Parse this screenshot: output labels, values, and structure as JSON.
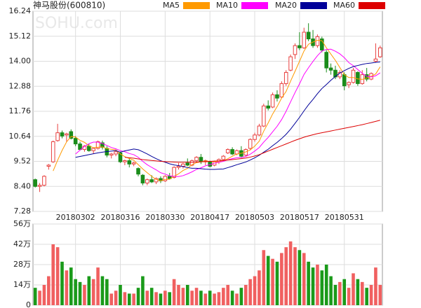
{
  "chart_data": [
    {
      "type": "candlestick",
      "title": "神马股份(600810)",
      "watermark": "SOHU.com",
      "categories": [
        null,
        null,
        null,
        null,
        null,
        null,
        null,
        null,
        null,
        "20180302",
        null,
        null,
        null,
        null,
        null,
        null,
        null,
        null,
        null,
        "20180316",
        null,
        null,
        null,
        null,
        null,
        null,
        null,
        null,
        null,
        "20180330",
        null,
        null,
        null,
        null,
        null,
        null,
        null,
        null,
        null,
        "20180417",
        null,
        null,
        null,
        null,
        null,
        null,
        null,
        null,
        null,
        "20180503",
        null,
        null,
        null,
        null,
        null,
        null,
        null,
        null,
        null,
        "20180517",
        null,
        null,
        null,
        null,
        null,
        null,
        null,
        null,
        null,
        "20180531",
        null,
        null,
        null,
        null,
        null,
        null,
        null,
        null
      ],
      "open": [
        8.7,
        8.4,
        8.45,
        9.3,
        9.5,
        10.45,
        10.8,
        10.7,
        10.85,
        10.55,
        10.3,
        10.05,
        10.2,
        10.0,
        10.1,
        10.35,
        10.1,
        9.8,
        9.85,
        9.9,
        9.5,
        9.55,
        9.4,
        9.2,
        8.9,
        8.55,
        8.7,
        8.6,
        8.75,
        8.65,
        8.85,
        8.8,
        9.25,
        9.3,
        9.45,
        9.35,
        9.55,
        9.7,
        9.5,
        9.5,
        9.35,
        9.5,
        9.6,
        9.9,
        10.05,
        9.85,
        10.0,
        9.8,
        10.1,
        10.5,
        10.7,
        11.1,
        12.0,
        11.95,
        12.5,
        12.4,
        13.0,
        13.6,
        14.3,
        14.7,
        14.6,
        15.3,
        15.0,
        14.7,
        15.0,
        14.4,
        13.7,
        13.6,
        13.3,
        13.4,
        12.95,
        13.05,
        13.5,
        13.0,
        13.4,
        13.2,
        14.0,
        14.2
      ],
      "high": [
        8.75,
        8.55,
        8.9,
        9.4,
        10.45,
        11.2,
        10.9,
        10.8,
        10.95,
        10.65,
        10.4,
        10.25,
        10.3,
        10.15,
        10.45,
        10.45,
        10.2,
        9.9,
        10.05,
        9.95,
        9.6,
        9.65,
        9.5,
        9.25,
        8.95,
        8.75,
        8.9,
        8.8,
        8.85,
        8.9,
        9.0,
        9.3,
        9.45,
        9.45,
        9.65,
        9.6,
        9.75,
        9.85,
        9.6,
        9.55,
        9.55,
        9.65,
        9.8,
        10.1,
        10.15,
        10.05,
        10.2,
        10.1,
        10.55,
        10.8,
        11.2,
        12.1,
        12.25,
        12.6,
        12.7,
        13.1,
        13.6,
        14.3,
        14.8,
        15.3,
        15.5,
        15.7,
        15.4,
        15.2,
        15.1,
        14.5,
        13.9,
        13.8,
        13.6,
        13.5,
        13.1,
        13.7,
        13.55,
        13.6,
        13.7,
        13.5,
        14.8,
        14.7
      ],
      "low": [
        8.35,
        8.15,
        8.4,
        9.15,
        9.45,
        10.4,
        10.55,
        10.4,
        10.5,
        10.2,
        10.0,
        9.95,
        9.95,
        9.85,
        10.05,
        10.05,
        9.7,
        9.65,
        9.75,
        9.45,
        9.35,
        9.25,
        9.3,
        8.85,
        8.45,
        8.45,
        8.55,
        8.5,
        8.55,
        8.6,
        8.7,
        8.75,
        9.15,
        9.2,
        9.3,
        9.3,
        9.45,
        9.4,
        9.35,
        9.25,
        9.3,
        9.4,
        9.55,
        9.85,
        9.8,
        9.8,
        9.7,
        9.75,
        10.05,
        10.4,
        10.65,
        11.05,
        11.8,
        11.9,
        12.2,
        12.35,
        12.9,
        13.55,
        14.1,
        14.5,
        14.55,
        14.9,
        14.6,
        14.6,
        14.4,
        13.5,
        13.4,
        13.2,
        13.2,
        12.7,
        12.8,
        13.0,
        12.9,
        12.95,
        13.1,
        13.15,
        13.95,
        14.15
      ],
      "close": [
        8.4,
        8.45,
        8.85,
        9.35,
        10.4,
        10.8,
        10.65,
        10.75,
        10.55,
        10.3,
        10.05,
        10.2,
        10.0,
        10.1,
        10.4,
        10.15,
        9.8,
        9.85,
        9.95,
        9.5,
        9.55,
        9.4,
        9.45,
        8.95,
        8.55,
        8.7,
        8.6,
        8.75,
        8.65,
        8.85,
        8.75,
        9.25,
        9.3,
        9.4,
        9.35,
        9.55,
        9.7,
        9.5,
        9.55,
        9.3,
        9.5,
        9.6,
        9.75,
        10.05,
        9.85,
        10.0,
        9.75,
        10.05,
        10.5,
        10.7,
        11.1,
        12.0,
        11.9,
        12.5,
        12.35,
        13.0,
        13.5,
        14.2,
        14.7,
        14.6,
        15.3,
        15.0,
        14.7,
        15.1,
        14.5,
        13.7,
        13.6,
        13.3,
        13.5,
        12.9,
        13.05,
        13.6,
        13.0,
        13.4,
        13.2,
        13.45,
        14.1,
        14.6
      ],
      "up_color": "#e8403f",
      "down_color": "#1a8c1a",
      "series": [
        {
          "name": "MA5",
          "color": "#ff9a00",
          "values": [
            null,
            null,
            null,
            null,
            9.09,
            9.57,
            10.01,
            10.39,
            10.63,
            10.61,
            10.46,
            10.37,
            10.22,
            10.13,
            10.15,
            10.17,
            10.09,
            10.06,
            10.03,
            9.85,
            9.73,
            9.65,
            9.57,
            9.37,
            9.18,
            9.01,
            8.85,
            8.71,
            8.65,
            8.71,
            8.72,
            8.85,
            8.96,
            9.11,
            9.21,
            9.37,
            9.46,
            9.5,
            9.53,
            9.52,
            9.51,
            9.49,
            9.54,
            9.64,
            9.75,
            9.85,
            9.88,
            9.94,
            10.03,
            10.2,
            10.42,
            10.87,
            11.24,
            11.64,
            11.97,
            12.35,
            12.65,
            13.11,
            13.55,
            14.0,
            14.46,
            14.76,
            14.86,
            14.94,
            14.92,
            14.6,
            14.32,
            14.04,
            13.72,
            13.4,
            13.27,
            13.27,
            13.21,
            13.19,
            13.25,
            13.33,
            13.43,
            13.75
          ]
        },
        {
          "name": "MA10",
          "color": "#ff00ff",
          "values": [
            null,
            null,
            null,
            null,
            null,
            null,
            null,
            null,
            null,
            9.85,
            10.02,
            10.19,
            10.31,
            10.38,
            10.38,
            10.32,
            10.23,
            10.14,
            10.08,
            10.0,
            9.95,
            9.87,
            9.82,
            9.7,
            9.52,
            9.37,
            9.25,
            9.14,
            9.01,
            8.95,
            8.87,
            8.85,
            8.84,
            8.88,
            8.96,
            9.05,
            9.16,
            9.23,
            9.32,
            9.37,
            9.44,
            9.48,
            9.52,
            9.59,
            9.64,
            9.68,
            9.69,
            9.74,
            9.84,
            9.98,
            10.14,
            10.38,
            10.59,
            10.84,
            11.09,
            11.39,
            11.76,
            12.18,
            12.6,
            12.99,
            13.41,
            13.71,
            13.99,
            14.25,
            14.46,
            14.53,
            14.54,
            14.45,
            14.33,
            14.16,
            13.94,
            13.8,
            13.63,
            13.46,
            13.33,
            13.3,
            13.35,
            13.48
          ]
        },
        {
          "name": "MA20",
          "color": "#000099",
          "values": [
            null,
            null,
            null,
            null,
            null,
            null,
            null,
            null,
            null,
            9.7,
            9.74,
            9.78,
            9.82,
            9.86,
            9.9,
            9.93,
            9.96,
            9.98,
            10.0,
            9.93,
            9.99,
            10.03,
            10.07,
            10.04,
            9.95,
            9.85,
            9.74,
            9.64,
            9.55,
            9.48,
            9.41,
            9.36,
            9.33,
            9.29,
            9.24,
            9.21,
            9.21,
            9.19,
            9.17,
            9.16,
            9.16,
            9.17,
            9.18,
            9.24,
            9.3,
            9.37,
            9.43,
            9.49,
            9.58,
            9.68,
            9.79,
            9.93,
            10.06,
            10.22,
            10.37,
            10.54,
            10.73,
            10.96,
            11.22,
            11.49,
            11.78,
            12.05,
            12.29,
            12.55,
            12.78,
            12.96,
            13.15,
            13.32,
            13.47,
            13.58,
            13.68,
            13.76,
            13.81,
            13.86,
            13.9,
            13.92,
            13.95,
            13.97
          ]
        },
        {
          "name": "MA60",
          "color": "#dd0000",
          "values": [
            null,
            null,
            null,
            null,
            null,
            null,
            null,
            null,
            null,
            null,
            null,
            null,
            null,
            null,
            null,
            null,
            null,
            null,
            null,
            null,
            9.7,
            9.68,
            9.66,
            9.63,
            9.6,
            9.58,
            9.56,
            9.54,
            9.52,
            9.51,
            9.5,
            9.49,
            9.48,
            9.48,
            9.48,
            9.48,
            9.49,
            9.5,
            9.51,
            9.52,
            9.53,
            9.54,
            9.56,
            9.58,
            9.6,
            9.62,
            9.64,
            9.67,
            9.71,
            9.76,
            9.82,
            9.9,
            9.98,
            10.06,
            10.14,
            10.22,
            10.3,
            10.38,
            10.46,
            10.53,
            10.6,
            10.66,
            10.71,
            10.76,
            10.8,
            10.84,
            10.88,
            10.92,
            10.96,
            11.0,
            11.04,
            11.08,
            11.12,
            11.16,
            11.21,
            11.26,
            11.31,
            11.36
          ]
        }
      ],
      "ylim": [
        7.28,
        16.24
      ],
      "yticks": [
        7.28,
        {
          "value": 8.4,
          "label": "8.40"
        },
        9.52,
        10.64,
        11.76,
        12.88,
        {
          "value": 14,
          "label": "14.00"
        },
        15.12,
        16.24
      ],
      "grid": true
    },
    {
      "type": "bar",
      "values": [
        12,
        10,
        14,
        20,
        42,
        40,
        30,
        24,
        26,
        18,
        16,
        14,
        20,
        18,
        26,
        20,
        18,
        8,
        10,
        14,
        9,
        8,
        8,
        12,
        20,
        10,
        12,
        9,
        8,
        10,
        9,
        18,
        14,
        12,
        14,
        10,
        12,
        10,
        8,
        10,
        8,
        9,
        12,
        14,
        10,
        8,
        12,
        14,
        18,
        20,
        24,
        38,
        34,
        32,
        30,
        36,
        40,
        44,
        40,
        38,
        36,
        30,
        26,
        28,
        24,
        28,
        20,
        14,
        16,
        18,
        12,
        22,
        18,
        16,
        12,
        14,
        26,
        14
      ],
      "up_color": "#f06060",
      "down_color": "#1a9a1a",
      "ylim": [
        0,
        56
      ],
      "yticks": [
        0,
        {
          "value": 14,
          "label": "14万"
        },
        {
          "value": 28,
          "label": "28万"
        },
        {
          "value": 42,
          "label": "42万"
        },
        {
          "value": 56,
          "label": "56万"
        }
      ],
      "grid": true
    }
  ]
}
